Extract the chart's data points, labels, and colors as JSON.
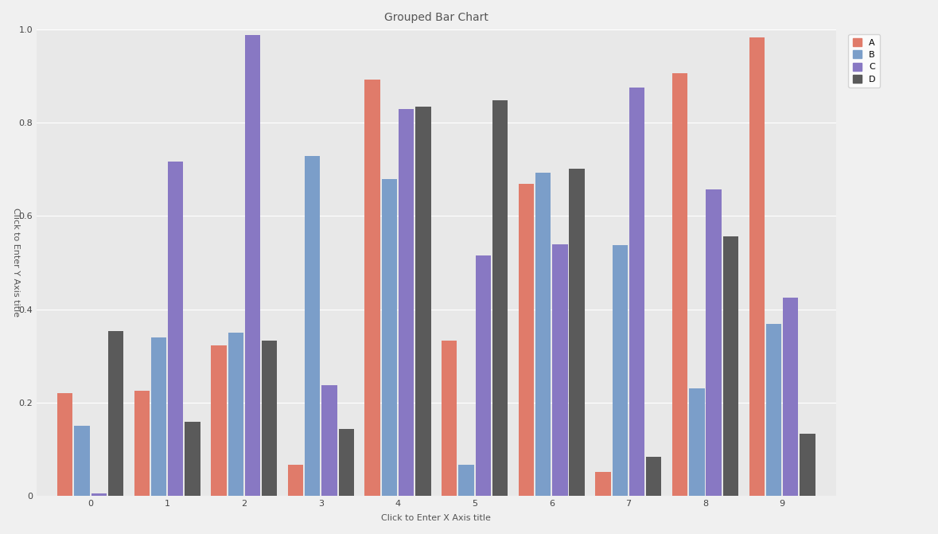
{
  "x": [
    0,
    1,
    2,
    3,
    4,
    5,
    6,
    7,
    8,
    9
  ],
  "A": [
    0.219471,
    0.224621,
    0.322362,
    0.065564,
    0.892701,
    0.332077,
    0.668314,
    0.050766,
    0.906671,
    0.98293
  ],
  "B": [
    0.149987,
    0.339211,
    0.350202,
    0.728007,
    0.679182,
    0.065495,
    0.69224,
    0.538005,
    0.230458,
    0.368888
  ],
  "C": [
    0.00402,
    0.716658,
    0.988852,
    0.237626,
    0.82915,
    0.515307,
    0.539698,
    0.875025,
    0.656841,
    0.424903
  ],
  "D": [
    0.352601,
    0.15782,
    0.33227,
    0.142295,
    0.834653,
    0.847952,
    0.702076,
    0.082769,
    0.55604,
    0.132482
  ],
  "colors": {
    "A": "#E07B6A",
    "B": "#7B9EC9",
    "C": "#8878C3",
    "D": "#5A5A5A"
  },
  "title": "Grouped Bar Chart",
  "ylabel": "Click to Enter Y Axis title",
  "xlabel": "Click to Enter X Axis title",
  "bg_color": "#E8E8E8",
  "fig_bg_color": "#F0F0F0",
  "ylim": [
    0,
    1.0
  ],
  "yticks": [
    0.0,
    0.2,
    0.4,
    0.6,
    0.8,
    1.0
  ]
}
